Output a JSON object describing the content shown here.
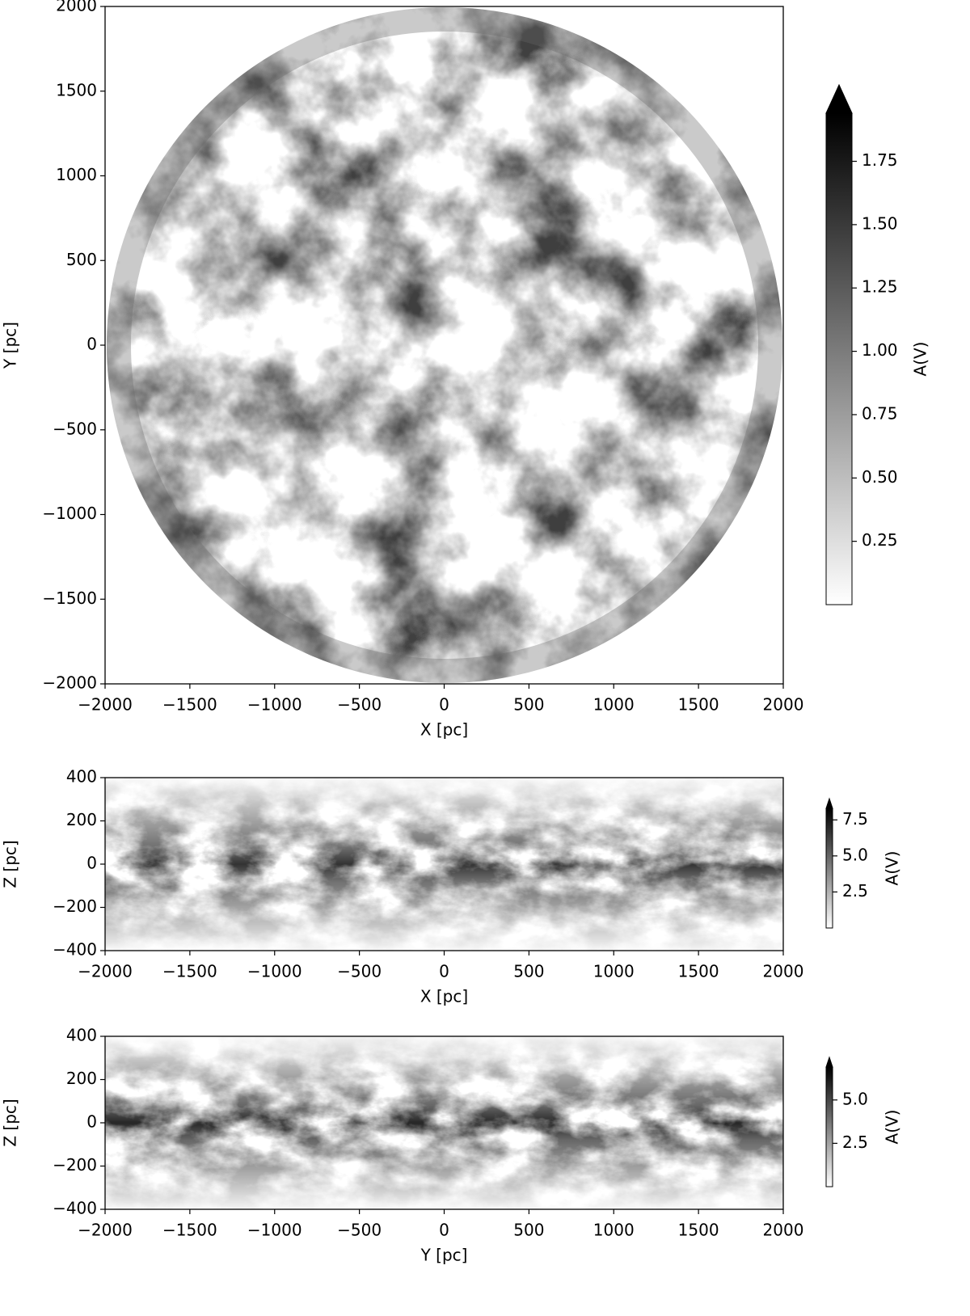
{
  "chart_data": [
    {
      "type": "heatmap",
      "xlabel": "X [pc]",
      "ylabel": "Y [pc]",
      "xlim": [
        -2000,
        2000
      ],
      "ylim": [
        -2000,
        2000
      ],
      "xticks": [
        {
          "value": -2000,
          "label": "−2000"
        },
        {
          "value": -1500,
          "label": "−1500"
        },
        {
          "value": -1000,
          "label": "−1000"
        },
        {
          "value": -500,
          "label": "−500"
        },
        0,
        500,
        1000,
        1500,
        2000
      ],
      "yticks": [
        {
          "value": -2000,
          "label": "−2000"
        },
        {
          "value": -1500,
          "label": "−1500"
        },
        {
          "value": -1000,
          "label": "−1000"
        },
        {
          "value": -500,
          "label": "−500"
        },
        0,
        500,
        1000,
        1500,
        2000
      ],
      "cmap_colors": [
        "#ffffff",
        "#000000"
      ],
      "colorbar": {
        "label": "A(V)",
        "lim": [
          0,
          1.94
        ],
        "extend": "max",
        "ticks": [
          0.25,
          {
            "value": 0.5,
            "label": "0.50"
          },
          0.75,
          {
            "value": 1,
            "label": "1.00"
          },
          1.25,
          {
            "value": 1.5,
            "label": "1.50"
          },
          1.75
        ]
      }
    },
    {
      "type": "heatmap",
      "xlabel": "X [pc]",
      "ylabel": "Z [pc]",
      "xlim": [
        -2000,
        2000
      ],
      "ylim": [
        -400,
        400
      ],
      "xticks": [
        {
          "value": -2000,
          "label": "−2000"
        },
        {
          "value": -1500,
          "label": "−1500"
        },
        {
          "value": -1000,
          "label": "−1000"
        },
        {
          "value": -500,
          "label": "−500"
        },
        0,
        500,
        1000,
        1500,
        2000
      ],
      "yticks": [
        {
          "value": -400,
          "label": "−400"
        },
        {
          "value": -200,
          "label": "−200"
        },
        0,
        200,
        400
      ],
      "cmap_colors": [
        "#ffffff",
        "#000000"
      ],
      "colorbar": {
        "label": "A(V)",
        "lim": [
          0,
          8.3
        ],
        "extend": "max",
        "ticks": [
          2.5,
          {
            "value": 5,
            "label": "5.0"
          },
          7.5
        ]
      }
    },
    {
      "type": "heatmap",
      "xlabel": "Y [pc]",
      "ylabel": "Z [pc]",
      "xlim": [
        -2000,
        2000
      ],
      "ylim": [
        -400,
        400
      ],
      "xticks": [
        {
          "value": -2000,
          "label": "−2000"
        },
        {
          "value": -1500,
          "label": "−1500"
        },
        {
          "value": -1000,
          "label": "−1000"
        },
        {
          "value": -500,
          "label": "−500"
        },
        0,
        500,
        1000,
        1500,
        2000
      ],
      "yticks": [
        {
          "value": -400,
          "label": "−400"
        },
        {
          "value": -200,
          "label": "−200"
        },
        0,
        200,
        400
      ],
      "cmap_colors": [
        "#ffffff",
        "#000000"
      ],
      "colorbar": {
        "label": "A(V)",
        "lim": [
          0,
          6.9
        ],
        "extend": "max",
        "ticks": [
          2.5,
          {
            "value": 5,
            "label": "5.0"
          }
        ]
      }
    }
  ]
}
